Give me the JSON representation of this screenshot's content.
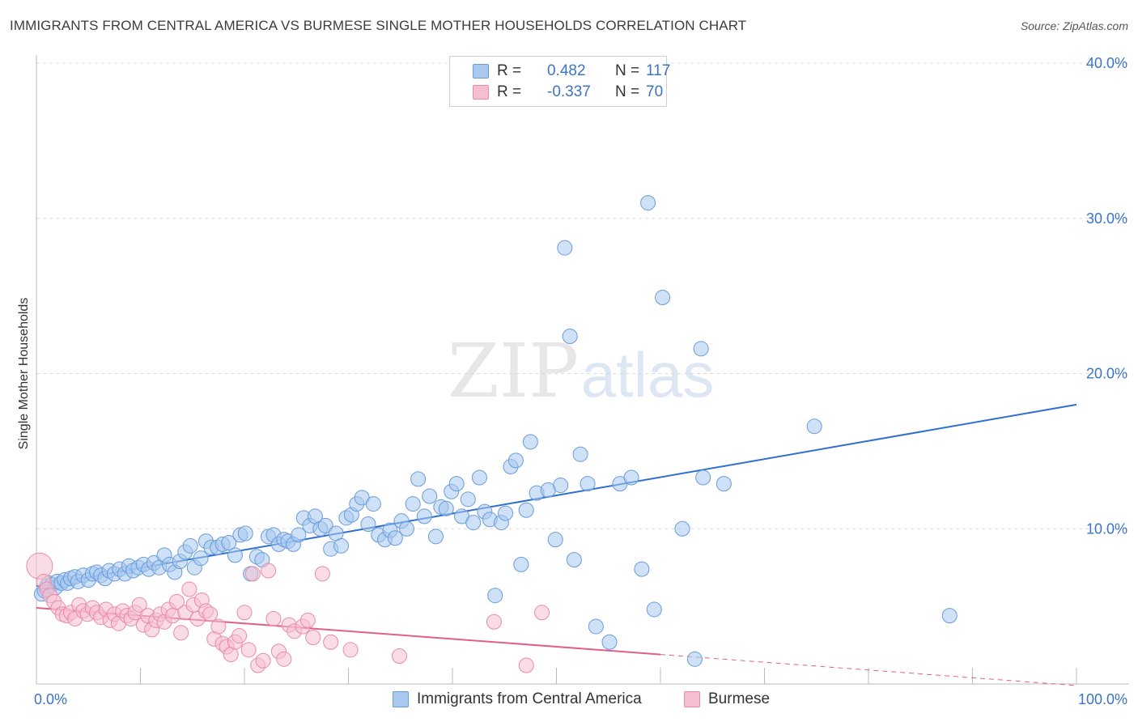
{
  "header": {
    "title": "IMMIGRANTS FROM CENTRAL AMERICA VS BURMESE SINGLE MOTHER HOUSEHOLDS CORRELATION CHART",
    "source": "Source: ZipAtlas.com"
  },
  "legend": {
    "r_label": "R =",
    "n_label": "N =",
    "rows": [
      {
        "r": "0.482",
        "n": "117",
        "fill": "#a8c8f0",
        "stroke": "#6a9bd8"
      },
      {
        "r": "-0.337",
        "n": "70",
        "fill": "#f6bfd0",
        "stroke": "#e98aaa"
      }
    ]
  },
  "watermark": {
    "zip": "ZIP",
    "atlas": "atlas"
  },
  "chart_data": {
    "type": "scatter",
    "title": "IMMIGRANTS FROM CENTRAL AMERICA VS BURMESE SINGLE MOTHER HOUSEHOLDS CORRELATION CHART",
    "xlabel": "",
    "ylabel": "Single Mother Households",
    "xlim": [
      0,
      100
    ],
    "ylim": [
      0,
      40
    ],
    "x_tick_labels": [
      "0.0%",
      "100.0%"
    ],
    "y_ticks": [
      10,
      20,
      30,
      40
    ],
    "y_tick_labels": [
      "10.0%",
      "20.0%",
      "30.0%",
      "40.0%"
    ],
    "grid": true,
    "series": [
      {
        "name": "Immigrants from Central America",
        "color": "#6a9bd8",
        "fill": "#a8c8f0",
        "line_color": "#2f6fcf",
        "trend": {
          "x": [
            0,
            100
          ],
          "y": [
            6.3,
            18.0
          ]
        },
        "points": [
          [
            0.5,
            5.8
          ],
          [
            0.8,
            6.0
          ],
          [
            1.0,
            6.3
          ],
          [
            1.2,
            6.5
          ],
          [
            1.5,
            6.4
          ],
          [
            1.8,
            6.2
          ],
          [
            2.0,
            6.6
          ],
          [
            2.4,
            6.5
          ],
          [
            2.7,
            6.7
          ],
          [
            3.0,
            6.5
          ],
          [
            3.3,
            6.8
          ],
          [
            3.7,
            6.9
          ],
          [
            4.0,
            6.6
          ],
          [
            4.5,
            7.0
          ],
          [
            5.0,
            6.7
          ],
          [
            5.4,
            7.1
          ],
          [
            5.8,
            7.2
          ],
          [
            6.2,
            7.0
          ],
          [
            6.6,
            6.8
          ],
          [
            7.0,
            7.3
          ],
          [
            7.5,
            7.1
          ],
          [
            8.0,
            7.4
          ],
          [
            8.5,
            7.1
          ],
          [
            8.9,
            7.6
          ],
          [
            9.3,
            7.3
          ],
          [
            9.8,
            7.5
          ],
          [
            10.3,
            7.7
          ],
          [
            10.8,
            7.4
          ],
          [
            11.3,
            7.8
          ],
          [
            11.8,
            7.5
          ],
          [
            12.3,
            8.3
          ],
          [
            12.8,
            7.7
          ],
          [
            13.3,
            7.2
          ],
          [
            13.8,
            7.9
          ],
          [
            14.3,
            8.5
          ],
          [
            14.8,
            8.9
          ],
          [
            15.2,
            7.5
          ],
          [
            15.8,
            8.1
          ],
          [
            16.3,
            9.2
          ],
          [
            16.8,
            8.8
          ],
          [
            17.4,
            8.8
          ],
          [
            17.9,
            9.0
          ],
          [
            18.5,
            9.1
          ],
          [
            19.1,
            8.3
          ],
          [
            19.6,
            9.6
          ],
          [
            20.1,
            9.7
          ],
          [
            20.6,
            7.1
          ],
          [
            21.2,
            8.2
          ],
          [
            21.7,
            8.0
          ],
          [
            22.3,
            9.5
          ],
          [
            22.8,
            9.6
          ],
          [
            23.3,
            9.0
          ],
          [
            23.8,
            9.3
          ],
          [
            24.2,
            9.2
          ],
          [
            24.7,
            9.0
          ],
          [
            25.2,
            9.6
          ],
          [
            25.7,
            10.7
          ],
          [
            26.3,
            10.2
          ],
          [
            26.8,
            10.8
          ],
          [
            27.3,
            10.0
          ],
          [
            27.8,
            10.2
          ],
          [
            28.3,
            8.7
          ],
          [
            28.8,
            9.7
          ],
          [
            29.3,
            8.9
          ],
          [
            29.8,
            10.7
          ],
          [
            30.3,
            10.9
          ],
          [
            30.8,
            11.6
          ],
          [
            31.3,
            12.0
          ],
          [
            31.9,
            10.3
          ],
          [
            32.4,
            11.6
          ],
          [
            32.9,
            9.6
          ],
          [
            33.5,
            9.3
          ],
          [
            34.0,
            9.9
          ],
          [
            34.5,
            9.4
          ],
          [
            35.1,
            10.5
          ],
          [
            35.6,
            10.0
          ],
          [
            36.2,
            11.6
          ],
          [
            36.7,
            13.2
          ],
          [
            37.3,
            10.8
          ],
          [
            37.8,
            12.1
          ],
          [
            38.4,
            9.5
          ],
          [
            38.9,
            11.4
          ],
          [
            39.4,
            11.3
          ],
          [
            39.9,
            12.4
          ],
          [
            40.4,
            12.9
          ],
          [
            40.9,
            10.8
          ],
          [
            41.5,
            11.9
          ],
          [
            42.0,
            10.4
          ],
          [
            42.6,
            13.3
          ],
          [
            43.1,
            11.1
          ],
          [
            43.6,
            10.6
          ],
          [
            44.1,
            5.7
          ],
          [
            44.7,
            10.4
          ],
          [
            45.1,
            11.0
          ],
          [
            45.6,
            14.0
          ],
          [
            46.1,
            14.4
          ],
          [
            46.6,
            7.7
          ],
          [
            47.1,
            11.2
          ],
          [
            47.5,
            15.6
          ],
          [
            48.1,
            12.3
          ],
          [
            49.2,
            12.5
          ],
          [
            49.9,
            9.3
          ],
          [
            50.4,
            12.8
          ],
          [
            50.8,
            28.1
          ],
          [
            51.3,
            22.4
          ],
          [
            51.7,
            8.0
          ],
          [
            52.3,
            14.8
          ],
          [
            53.0,
            12.9
          ],
          [
            53.8,
            3.7
          ],
          [
            55.1,
            2.7
          ],
          [
            56.1,
            12.9
          ],
          [
            57.2,
            13.3
          ],
          [
            58.2,
            7.4
          ],
          [
            58.8,
            31.0
          ],
          [
            59.4,
            4.8
          ],
          [
            60.2,
            24.9
          ],
          [
            62.1,
            10.0
          ],
          [
            63.3,
            1.6
          ],
          [
            63.9,
            21.6
          ],
          [
            64.1,
            13.3
          ],
          [
            66.1,
            12.9
          ],
          [
            74.8,
            16.6
          ],
          [
            87.8,
            4.4
          ]
        ]
      },
      {
        "name": "Burmese",
        "color": "#e98aaa",
        "fill": "#f6bfd0",
        "line_color": "#e0608a",
        "trend": {
          "x": [
            0,
            60
          ],
          "y": [
            4.9,
            1.9
          ]
        },
        "trend_dashed": {
          "x": [
            60,
            100
          ],
          "y": [
            1.9,
            -0.1
          ]
        },
        "points": [
          [
            0.3,
            7.6
          ],
          [
            0.7,
            6.6
          ],
          [
            1.0,
            6.1
          ],
          [
            1.3,
            5.7
          ],
          [
            1.7,
            5.3
          ],
          [
            2.1,
            4.9
          ],
          [
            2.5,
            4.5
          ],
          [
            2.9,
            4.4
          ],
          [
            3.3,
            4.6
          ],
          [
            3.7,
            4.2
          ],
          [
            4.1,
            5.1
          ],
          [
            4.5,
            4.7
          ],
          [
            4.9,
            4.5
          ],
          [
            5.4,
            4.9
          ],
          [
            5.8,
            4.6
          ],
          [
            6.2,
            4.3
          ],
          [
            6.7,
            4.8
          ],
          [
            7.1,
            4.1
          ],
          [
            7.5,
            4.5
          ],
          [
            7.9,
            3.9
          ],
          [
            8.3,
            4.7
          ],
          [
            8.7,
            4.4
          ],
          [
            9.1,
            4.2
          ],
          [
            9.5,
            4.6
          ],
          [
            9.9,
            5.1
          ],
          [
            10.3,
            3.8
          ],
          [
            10.7,
            4.4
          ],
          [
            11.1,
            3.5
          ],
          [
            11.5,
            4.1
          ],
          [
            11.9,
            4.5
          ],
          [
            12.3,
            4.0
          ],
          [
            12.7,
            4.8
          ],
          [
            13.1,
            4.4
          ],
          [
            13.5,
            5.3
          ],
          [
            13.9,
            3.3
          ],
          [
            14.3,
            4.6
          ],
          [
            14.7,
            6.1
          ],
          [
            15.1,
            5.1
          ],
          [
            15.5,
            4.2
          ],
          [
            15.9,
            5.4
          ],
          [
            16.3,
            4.7
          ],
          [
            16.7,
            4.5
          ],
          [
            17.1,
            2.9
          ],
          [
            17.5,
            3.7
          ],
          [
            17.9,
            2.6
          ],
          [
            18.3,
            2.4
          ],
          [
            18.7,
            1.9
          ],
          [
            19.1,
            2.7
          ],
          [
            19.5,
            3.1
          ],
          [
            20.0,
            4.6
          ],
          [
            20.4,
            2.2
          ],
          [
            20.8,
            7.1
          ],
          [
            21.3,
            1.2
          ],
          [
            21.8,
            1.5
          ],
          [
            22.3,
            7.3
          ],
          [
            22.8,
            4.2
          ],
          [
            23.3,
            2.1
          ],
          [
            23.8,
            1.6
          ],
          [
            24.3,
            3.8
          ],
          [
            24.8,
            3.4
          ],
          [
            25.6,
            3.7
          ],
          [
            26.1,
            4.1
          ],
          [
            26.6,
            3.0
          ],
          [
            27.5,
            7.1
          ],
          [
            28.3,
            2.7
          ],
          [
            30.2,
            2.2
          ],
          [
            34.9,
            1.8
          ],
          [
            44.0,
            4.0
          ],
          [
            47.1,
            1.2
          ],
          [
            48.6,
            4.6
          ]
        ]
      }
    ]
  }
}
